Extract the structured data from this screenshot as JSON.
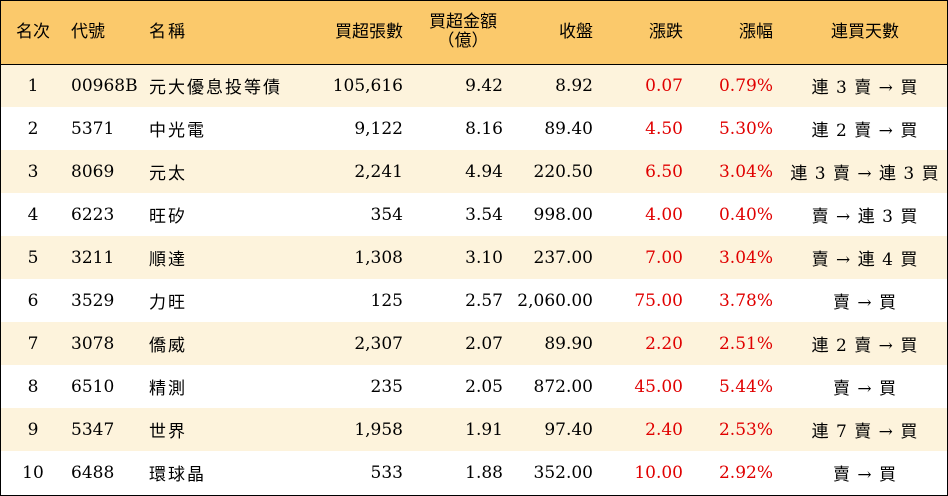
{
  "colors": {
    "header_bg": "#fbc96b",
    "odd_row_bg": "#fdf3dc",
    "even_row_bg": "#ffffff",
    "up": "#e00000"
  },
  "headers": {
    "rank": "名次",
    "code": "代號",
    "name": "名稱",
    "net_lots": "買超張數",
    "net_amount_line1": "買超金額",
    "net_amount_line2": "（億）",
    "close": "收盤",
    "change": "漲跌",
    "pct": "漲幅",
    "streak": "連買天數"
  },
  "rows": [
    {
      "rank": "1",
      "code": "00968B",
      "name": "元大優息投等債",
      "net_lots": "105,616",
      "net_amount": "9.42",
      "close": "8.92",
      "change": "0.07",
      "pct": "0.79%",
      "streak": "連 3 賣 → 買"
    },
    {
      "rank": "2",
      "code": "5371",
      "name": "中光電",
      "net_lots": "9,122",
      "net_amount": "8.16",
      "close": "89.40",
      "change": "4.50",
      "pct": "5.30%",
      "streak": "連 2 賣 → 買"
    },
    {
      "rank": "3",
      "code": "8069",
      "name": "元太",
      "net_lots": "2,241",
      "net_amount": "4.94",
      "close": "220.50",
      "change": "6.50",
      "pct": "3.04%",
      "streak": "連 3 賣 → 連 3 買"
    },
    {
      "rank": "4",
      "code": "6223",
      "name": "旺矽",
      "net_lots": "354",
      "net_amount": "3.54",
      "close": "998.00",
      "change": "4.00",
      "pct": "0.40%",
      "streak": "賣 → 連 3 買"
    },
    {
      "rank": "5",
      "code": "3211",
      "name": "順達",
      "net_lots": "1,308",
      "net_amount": "3.10",
      "close": "237.00",
      "change": "7.00",
      "pct": "3.04%",
      "streak": "賣 → 連 4 買"
    },
    {
      "rank": "6",
      "code": "3529",
      "name": "力旺",
      "net_lots": "125",
      "net_amount": "2.57",
      "close": "2,060.00",
      "change": "75.00",
      "pct": "3.78%",
      "streak": "賣 → 買"
    },
    {
      "rank": "7",
      "code": "3078",
      "name": "僑威",
      "net_lots": "2,307",
      "net_amount": "2.07",
      "close": "89.90",
      "change": "2.20",
      "pct": "2.51%",
      "streak": "連 2 賣 → 買"
    },
    {
      "rank": "8",
      "code": "6510",
      "name": "精測",
      "net_lots": "235",
      "net_amount": "2.05",
      "close": "872.00",
      "change": "45.00",
      "pct": "5.44%",
      "streak": "賣 → 買"
    },
    {
      "rank": "9",
      "code": "5347",
      "name": "世界",
      "net_lots": "1,958",
      "net_amount": "1.91",
      "close": "97.40",
      "change": "2.40",
      "pct": "2.53%",
      "streak": "連 7 賣 → 買"
    },
    {
      "rank": "10",
      "code": "6488",
      "name": "環球晶",
      "net_lots": "533",
      "net_amount": "1.88",
      "close": "352.00",
      "change": "10.00",
      "pct": "2.92%",
      "streak": "賣 → 買"
    }
  ]
}
